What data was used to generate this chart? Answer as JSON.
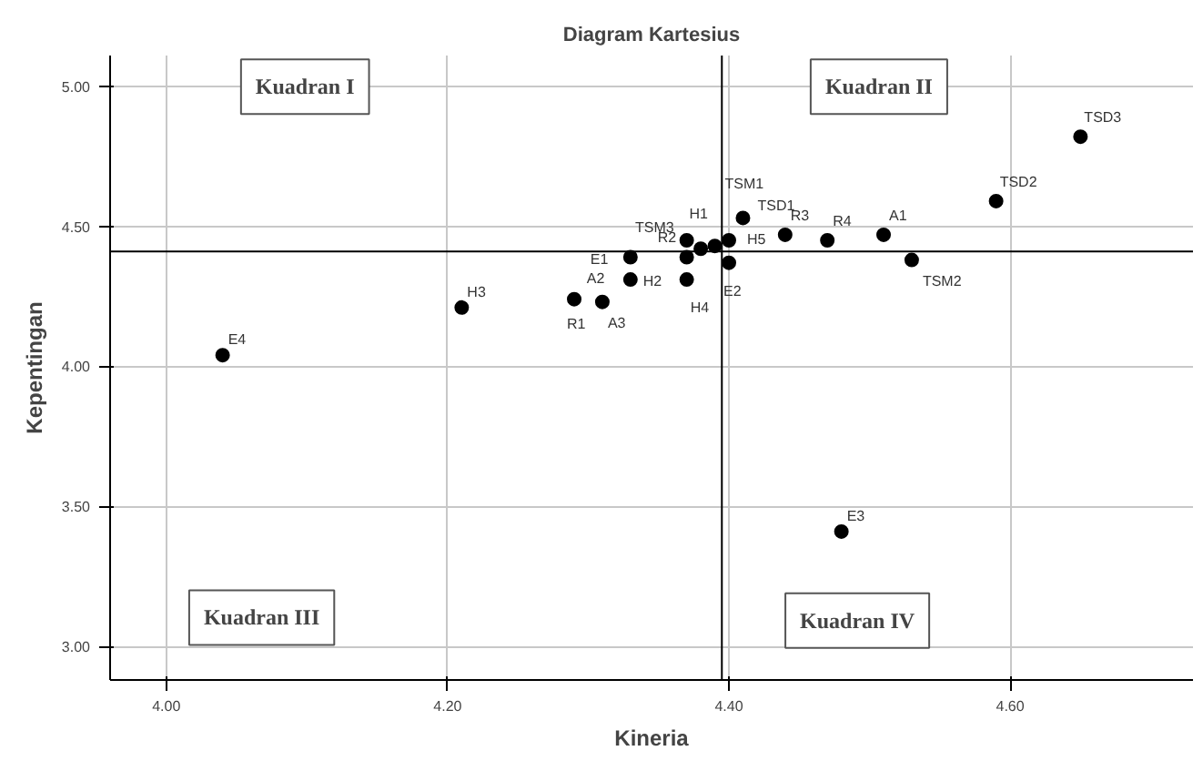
{
  "chart_data": {
    "type": "scatter",
    "title": "Diagram Kartesius",
    "xlabel": "Kineria",
    "ylabel": "Kepentingan",
    "x": [
      4.65,
      4.59,
      4.41,
      4.51,
      4.47,
      4.44,
      4.4,
      4.39,
      4.38,
      4.37,
      4.33,
      4.33,
      4.37,
      4.37,
      4.4,
      4.53,
      4.29,
      4.31,
      4.21,
      4.04,
      4.48
    ],
    "series": [
      {
        "color": "#000000",
        "values": [
          4.82,
          4.59,
          4.53,
          4.47,
          4.45,
          4.47,
          4.45,
          4.43,
          4.42,
          4.45,
          4.39,
          4.31,
          4.39,
          4.31,
          4.37,
          4.38,
          4.24,
          4.23,
          4.21,
          4.04,
          3.41
        ]
      }
    ],
    "marker": "circle",
    "grid": true,
    "xlim": [
      3.96,
      4.73
    ],
    "xticks": [
      {
        "value": 4.0,
        "label": "4.00"
      },
      {
        "value": 4.2,
        "label": "4.20"
      },
      {
        "value": 4.4,
        "label": "4.40"
      },
      {
        "value": 4.6,
        "label": "4.60"
      }
    ],
    "ylim": [
      2.88,
      5.11
    ],
    "yticks": [
      {
        "value": 3.0,
        "label": "3.00"
      },
      {
        "value": 3.5,
        "label": "3.50"
      },
      {
        "value": 4.0,
        "label": "4.00"
      },
      {
        "value": 4.5,
        "label": "4.50"
      },
      {
        "value": 5.0,
        "label": "5.00"
      }
    ],
    "ref_lines": [
      {
        "axis": "x",
        "value": 4.395
      },
      {
        "axis": "y",
        "value": 4.41
      }
    ],
    "annotations": [
      {
        "text": "TSD3",
        "x": 4.65,
        "y": 4.82
      },
      {
        "text": "TSD2",
        "x": 4.59,
        "y": 4.59
      },
      {
        "text": "TSM1",
        "x": 4.41,
        "y": 4.53
      },
      {
        "text": "TSD1",
        "x": 4.41,
        "y": 4.53
      },
      {
        "text": "A1",
        "x": 4.51,
        "y": 4.47
      },
      {
        "text": "R4",
        "x": 4.47,
        "y": 4.45
      },
      {
        "text": "R3",
        "x": 4.44,
        "y": 4.47
      },
      {
        "text": "H5",
        "x": 4.4,
        "y": 4.45
      },
      {
        "text": "H1",
        "x": 4.39,
        "y": 4.43
      },
      {
        "text": "TSM3",
        "x": 4.38,
        "y": 4.42
      },
      {
        "text": "R2",
        "x": 4.37,
        "y": 4.45
      },
      {
        "text": "E1",
        "x": 4.33,
        "y": 4.39
      },
      {
        "text": "A2",
        "x": 4.33,
        "y": 4.31
      },
      {
        "text": "H2",
        "x": 4.37,
        "y": 4.39
      },
      {
        "text": "H4",
        "x": 4.37,
        "y": 4.31
      },
      {
        "text": "E2",
        "x": 4.4,
        "y": 4.37
      },
      {
        "text": "TSM2",
        "x": 4.53,
        "y": 4.38
      },
      {
        "text": "R1",
        "x": 4.29,
        "y": 4.24
      },
      {
        "text": "A3",
        "x": 4.31,
        "y": 4.23
      },
      {
        "text": "H3",
        "x": 4.21,
        "y": 4.21
      },
      {
        "text": "E4",
        "x": 4.04,
        "y": 4.04
      },
      {
        "text": "E3",
        "x": 4.48,
        "y": 3.41
      },
      "Kuadran I",
      "Kuadran II",
      "Kuadran III",
      "Kuadran IV"
    ]
  }
}
